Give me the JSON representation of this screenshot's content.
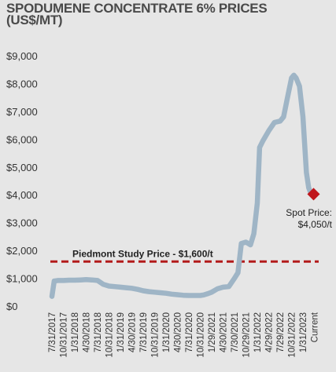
{
  "colors": {
    "background": "#e6e6e6",
    "series": "#9fb5c6",
    "study_line": "#b31b1b",
    "spot_marker": "#c0161c",
    "text": "#333333"
  },
  "chart_data": {
    "type": "line",
    "title_lines": [
      "SPODUMENE CONCENTRATE 6% PRICES",
      "(US$/MT)"
    ],
    "xlabel": "",
    "ylabel": "",
    "ylim": [
      0,
      9000
    ],
    "y_ticks": [
      0,
      1000,
      2000,
      3000,
      4000,
      5000,
      6000,
      7000,
      8000,
      9000
    ],
    "y_tick_labels": [
      "$0",
      "$1,000",
      "$2,000",
      "$3,000",
      "$4,000",
      "$5,000",
      "$6,000",
      "$7,000",
      "$8,000",
      "$9,000"
    ],
    "categories": [
      "7/31/2017",
      "10/31/2017",
      "1/31/2018",
      "4/30/2018",
      "7/31/2018",
      "10/31/2018",
      "1/31/2019",
      "4/30/2019",
      "7/31/2019",
      "10/31/2019",
      "1/31/2020",
      "4/30/2020",
      "7/31/2020",
      "10/31/2020",
      "1/29/2021",
      "4/30/2021",
      "7/30/2021",
      "10/29/2021",
      "1/31/2022",
      "4/29/2022",
      "7/29/2022",
      "10/31/2022",
      "1/31/2023",
      "Current"
    ],
    "grid": false,
    "legend": "none",
    "series": [
      {
        "x": [
          0,
          0.2,
          0.5,
          1,
          1.5,
          2,
          2.5,
          3,
          3.5,
          4,
          4.5,
          5,
          5.5,
          6,
          6.5,
          7,
          7.5,
          8,
          8.5,
          9,
          9.5,
          10,
          10.5,
          11,
          11.5,
          12,
          12.5,
          13,
          13.3,
          13.7,
          14,
          14.5,
          15,
          15.5,
          16,
          16.3,
          16.6,
          17,
          17.4,
          17.7,
          18,
          18.2,
          18.5,
          19,
          19.5,
          20,
          20.3,
          20.7,
          21,
          21.2,
          21.4,
          21.7,
          22,
          22.3,
          22.5,
          22.7
        ],
        "y": [
          350,
          900,
          920,
          920,
          930,
          930,
          940,
          950,
          940,
          920,
          780,
          720,
          700,
          680,
          660,
          640,
          600,
          550,
          520,
          500,
          480,
          460,
          430,
          410,
          390,
          380,
          380,
          380,
          400,
          450,
          500,
          620,
          680,
          700,
          1000,
          1200,
          2250,
          2300,
          2200,
          2600,
          3700,
          5700,
          5950,
          6300,
          6600,
          6650,
          6800,
          7600,
          8200,
          8300,
          8200,
          7900,
          6800,
          4800,
          4250,
          4050
        ]
      }
    ],
    "reference_line": {
      "label": "Piedmont Study Price - $1,600/t",
      "value": 1600
    },
    "spot_point": {
      "x": 23,
      "value": 4050,
      "label_lines": [
        "Spot Price:",
        "$4,050/t"
      ]
    }
  }
}
